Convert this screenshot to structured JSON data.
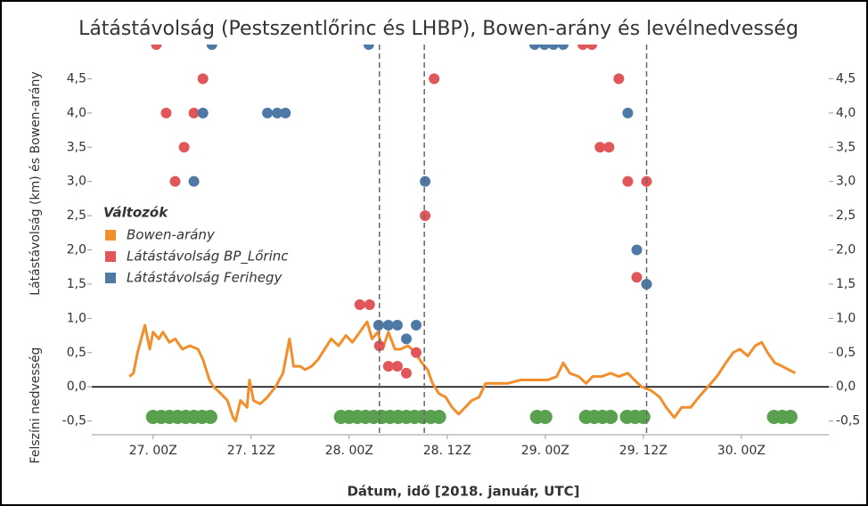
{
  "chart_data": {
    "type": "scatter",
    "title": "Látástávolság (Pestszentlőrinc és LHBP), Bowen-arány és levélnedvesség",
    "y_label": "Látástávolság (km) és Bowen-arány",
    "x_label": "Dátum, idő [2018. január, UTC]",
    "legend_title": "Változók",
    "xlim": [
      -7.5,
      82.7
    ],
    "ylim": [
      -0.7,
      5.0
    ],
    "xticks": [
      {
        "value": 0,
        "label": "27. 00Z"
      },
      {
        "value": 12,
        "label": "27. 12Z"
      },
      {
        "value": 24,
        "label": "28. 00Z"
      },
      {
        "value": 36,
        "label": "28. 12Z"
      },
      {
        "value": 48,
        "label": "29. 00Z"
      },
      {
        "value": 60,
        "label": "29. 12Z"
      },
      {
        "value": 72,
        "label": "30. 00Z"
      }
    ],
    "yticks": [
      {
        "value": -0.5,
        "label": "-0,5"
      },
      {
        "value": 0,
        "label": "0,0"
      },
      {
        "value": 0.5,
        "label": "0,5"
      },
      {
        "value": 1,
        "label": "1,0"
      },
      {
        "value": 1.5,
        "label": "1,5"
      },
      {
        "value": 2,
        "label": "2,0"
      },
      {
        "value": 2.5,
        "label": "2,5"
      },
      {
        "value": 3,
        "label": "3,0"
      },
      {
        "value": 3.5,
        "label": "3,5"
      },
      {
        "value": 4,
        "label": "4,0"
      },
      {
        "value": 4.5,
        "label": "4,5"
      }
    ],
    "reference_lines": [
      27.7,
      33.2,
      60.4
    ],
    "series": [
      {
        "name": "Bowen-arány",
        "color": "#f28e2b",
        "mark": "line",
        "x": [
          -2.9,
          -2.4,
          -1.9,
          -1.0,
          -0.4,
          0,
          0.7,
          1.2,
          2.0,
          2.7,
          3.6,
          4.5,
          5.5,
          6.1,
          6.9,
          7.4,
          8.3,
          9.1,
          9.8,
          10.1,
          10.7,
          11.5,
          11.8,
          12.3,
          13.1,
          14.0,
          15.0,
          15.9,
          16.7,
          17.2,
          18.0,
          18.6,
          19.4,
          20.2,
          21.0,
          21.8,
          22.7,
          23.6,
          24.4,
          25.3,
          26.2,
          26.8,
          27.5,
          28.1,
          28.8,
          29.6,
          30.3,
          31.2,
          32.1,
          32.9,
          33.6,
          34.2,
          35.0,
          35.8,
          36.6,
          37.4,
          38.2,
          39.0,
          39.9,
          40.7,
          41.8,
          43.4,
          45.0,
          46.7,
          48.3,
          49.4,
          50.2,
          51.0,
          52.1,
          53.0,
          53.8,
          54.9,
          56.0,
          57.0,
          58.1,
          58.9,
          59.8,
          60.9,
          62.0,
          62.8,
          63.8,
          64.7,
          65.8,
          66.8,
          67.9,
          69.0,
          70.1,
          71.0,
          71.8,
          72.8,
          73.7,
          74.5,
          75.2,
          76.1,
          77.0,
          77.8,
          78.6
        ],
        "values": [
          0.15,
          0.2,
          0.5,
          0.9,
          0.55,
          0.8,
          0.7,
          0.8,
          0.65,
          0.7,
          0.55,
          0.6,
          0.55,
          0.4,
          0.1,
          0.0,
          -0.1,
          -0.2,
          -0.45,
          -0.5,
          -0.2,
          -0.3,
          0.1,
          -0.2,
          -0.25,
          -0.15,
          0.0,
          0.2,
          0.7,
          0.3,
          0.3,
          0.25,
          0.3,
          0.4,
          0.55,
          0.7,
          0.6,
          0.75,
          0.65,
          0.8,
          0.95,
          0.7,
          0.8,
          0.55,
          0.8,
          0.55,
          0.55,
          0.6,
          0.5,
          0.35,
          0.25,
          0.05,
          -0.1,
          -0.15,
          -0.3,
          -0.4,
          -0.3,
          -0.2,
          -0.15,
          0.05,
          0.05,
          0.05,
          0.1,
          0.1,
          0.1,
          0.15,
          0.35,
          0.2,
          0.15,
          0.05,
          0.15,
          0.15,
          0.2,
          0.15,
          0.2,
          0.1,
          0.0,
          -0.05,
          -0.15,
          -0.3,
          -0.45,
          -0.3,
          -0.3,
          -0.15,
          0.0,
          0.15,
          0.35,
          0.5,
          0.55,
          0.45,
          0.6,
          0.65,
          0.5,
          0.35,
          0.3,
          0.25,
          0.2
        ]
      },
      {
        "name": "Látástávolság BP_Lőrinc",
        "color": "#e15759",
        "mark": "point",
        "x": [
          0.4,
          1.6,
          2.7,
          3.8,
          5.0,
          6.1,
          25.3,
          26.5,
          27.7,
          28.8,
          29.9,
          31.0,
          32.2,
          33.3,
          34.4,
          52.6,
          53.7,
          54.7,
          55.8,
          57.0,
          58.1,
          59.2,
          60.4
        ],
        "values": [
          5.0,
          4.0,
          3.0,
          3.5,
          4.0,
          4.5,
          1.2,
          1.2,
          0.6,
          0.3,
          0.3,
          0.2,
          0.5,
          2.5,
          4.5,
          5.0,
          5.0,
          3.5,
          3.5,
          4.5,
          3.0,
          1.6,
          3.0
        ]
      },
      {
        "name": "Látástávolság Ferihegy",
        "color": "#4e79a7",
        "mark": "point",
        "x": [
          5.0,
          6.1,
          7.2,
          14.0,
          15.2,
          16.2,
          26.4,
          27.6,
          28.8,
          29.9,
          31.0,
          32.2,
          33.3,
          46.7,
          47.9,
          49.0,
          50.2,
          58.1,
          59.2,
          60.4
        ],
        "values": [
          3.0,
          4.0,
          5.0,
          4.0,
          4.0,
          4.0,
          5.0,
          0.9,
          0.9,
          0.9,
          0.7,
          0.9,
          3.0,
          5.0,
          5.0,
          5.0,
          5.0,
          4.0,
          2.0,
          1.5
        ]
      }
    ],
    "surface_wetness": {
      "name": "Felszíni nedvesség",
      "color": "#59a14f",
      "x": [
        0,
        1,
        2,
        3,
        4,
        5,
        6,
        7,
        23,
        24,
        25,
        26,
        27,
        28,
        29,
        30,
        31,
        32,
        33,
        34,
        35,
        47,
        48,
        53,
        54,
        55,
        56,
        58,
        59,
        60,
        76,
        77,
        78
      ],
      "values": [
        -0.44,
        -0.44,
        -0.44,
        -0.44,
        -0.44,
        -0.44,
        -0.44,
        -0.44,
        -0.44,
        -0.44,
        -0.44,
        -0.44,
        -0.44,
        -0.44,
        -0.44,
        -0.44,
        -0.44,
        -0.44,
        -0.44,
        -0.44,
        -0.44,
        -0.44,
        -0.44,
        -0.44,
        -0.44,
        -0.44,
        -0.44,
        -0.44,
        -0.44,
        -0.44,
        -0.44,
        -0.44,
        -0.44
      ]
    }
  }
}
